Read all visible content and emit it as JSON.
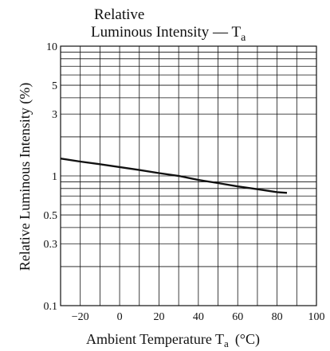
{
  "chart_data": {
    "type": "line",
    "title_line1": "Relative",
    "title_line2_main": "Luminous Intensity — T",
    "title_line2_sub": "a",
    "xlabel_main": "Ambient Temperature  T",
    "xlabel_sub": "a",
    "xlabel_unit": "(°C)",
    "ylabel": "Relative Luminous Intensity  (%)",
    "x_scale": "linear",
    "y_scale": "log",
    "xlim": [
      -30,
      100
    ],
    "ylim": [
      0.1,
      10
    ],
    "grid": true,
    "x_ticks": [
      -20,
      0,
      20,
      40,
      60,
      80,
      100
    ],
    "x_tick_labels": [
      "−20",
      "0",
      "20",
      "40",
      "60",
      "80",
      "100"
    ],
    "y_ticks": [
      0.1,
      0.3,
      0.5,
      1,
      3,
      5,
      10
    ],
    "y_tick_labels": [
      "0.1",
      "0.3",
      "0.5",
      "1",
      "3",
      "5",
      "10"
    ],
    "series": [
      {
        "x": [
          -30,
          -20,
          -10,
          0,
          10,
          20,
          30,
          40,
          50,
          60,
          70,
          80,
          85
        ],
        "y": [
          1.36,
          1.29,
          1.23,
          1.17,
          1.11,
          1.05,
          1.0,
          0.93,
          0.88,
          0.83,
          0.79,
          0.75,
          0.74
        ]
      }
    ]
  }
}
